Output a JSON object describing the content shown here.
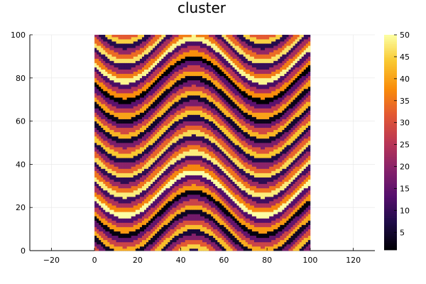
{
  "chart_data": {
    "type": "heatmap",
    "title": "cluster",
    "xlabel": "",
    "ylabel": "",
    "xlim": [
      -30,
      130
    ],
    "ylim": [
      0,
      100
    ],
    "x_ticks": [
      -20,
      0,
      20,
      40,
      60,
      80,
      100,
      120
    ],
    "y_ticks": [
      0,
      20,
      40,
      60,
      80,
      100
    ],
    "grid": true,
    "colormap": "inferno",
    "colorbar": {
      "min": 1,
      "max": 50,
      "ticks": [
        5,
        10,
        15,
        20,
        25,
        30,
        35,
        40,
        45,
        50
      ]
    },
    "grid_extent": {
      "x": [
        0,
        100
      ],
      "y": [
        0,
        100
      ]
    },
    "grid_size": {
      "cols": 100,
      "rows": 100
    },
    "pattern": "Cluster labels 1-50 arranged in horizontal bands that follow a sine wave along x (period about 64, amplitude about 10), producing wavy stripes across the grid"
  }
}
